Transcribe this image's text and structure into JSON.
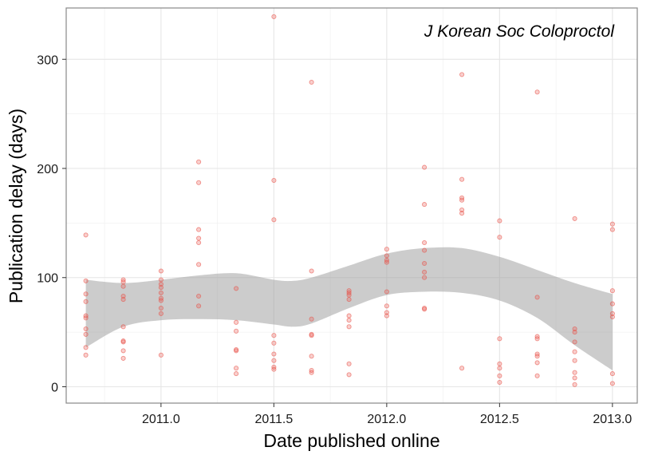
{
  "chart_data": {
    "type": "scatter",
    "xlabel": "Date published online",
    "ylabel": "Publication delay (days)",
    "annotation": "J Korean Soc Coloproctol",
    "xlim": [
      2010.58,
      2013.11
    ],
    "ylim": [
      -15,
      347
    ],
    "x_ticks": [
      2011.0,
      2011.5,
      2012.0,
      2012.5,
      2013.0
    ],
    "x_tick_labels": [
      "2011.0",
      "2011.5",
      "2012.0",
      "2012.5",
      "2013.0"
    ],
    "y_ticks": [
      0,
      100,
      200,
      300
    ],
    "y_tick_labels": [
      "0",
      "100",
      "200",
      "300"
    ],
    "grid": true,
    "point_color": "#e8534a",
    "band_color": "#999999",
    "points": [
      [
        2010.667,
        139
      ],
      [
        2010.667,
        97
      ],
      [
        2010.667,
        85
      ],
      [
        2010.667,
        78
      ],
      [
        2010.667,
        65
      ],
      [
        2010.667,
        63
      ],
      [
        2010.667,
        53
      ],
      [
        2010.667,
        48
      ],
      [
        2010.667,
        36
      ],
      [
        2010.667,
        29
      ],
      [
        2010.833,
        98
      ],
      [
        2010.833,
        96
      ],
      [
        2010.833,
        92
      ],
      [
        2010.833,
        83
      ],
      [
        2010.833,
        80
      ],
      [
        2010.833,
        55
      ],
      [
        2010.833,
        42
      ],
      [
        2010.833,
        41
      ],
      [
        2010.833,
        33
      ],
      [
        2010.833,
        26
      ],
      [
        2011.0,
        106
      ],
      [
        2011.0,
        98
      ],
      [
        2011.0,
        94
      ],
      [
        2011.0,
        91
      ],
      [
        2011.0,
        86
      ],
      [
        2011.0,
        81
      ],
      [
        2011.0,
        79
      ],
      [
        2011.0,
        72
      ],
      [
        2011.0,
        67
      ],
      [
        2011.0,
        29
      ],
      [
        2011.167,
        206
      ],
      [
        2011.167,
        187
      ],
      [
        2011.167,
        144
      ],
      [
        2011.167,
        136
      ],
      [
        2011.167,
        132
      ],
      [
        2011.167,
        112
      ],
      [
        2011.167,
        83
      ],
      [
        2011.167,
        74
      ],
      [
        2011.333,
        90
      ],
      [
        2011.333,
        59
      ],
      [
        2011.333,
        51
      ],
      [
        2011.333,
        34
      ],
      [
        2011.333,
        33
      ],
      [
        2011.333,
        17
      ],
      [
        2011.333,
        12
      ],
      [
        2011.5,
        339
      ],
      [
        2011.5,
        189
      ],
      [
        2011.5,
        153
      ],
      [
        2011.5,
        47
      ],
      [
        2011.5,
        40
      ],
      [
        2011.5,
        30
      ],
      [
        2011.5,
        24
      ],
      [
        2011.5,
        18
      ],
      [
        2011.5,
        16
      ],
      [
        2011.667,
        279
      ],
      [
        2011.667,
        106
      ],
      [
        2011.667,
        62
      ],
      [
        2011.667,
        48
      ],
      [
        2011.667,
        47
      ],
      [
        2011.667,
        28
      ],
      [
        2011.667,
        15
      ],
      [
        2011.667,
        13
      ],
      [
        2011.833,
        88
      ],
      [
        2011.833,
        86
      ],
      [
        2011.833,
        84
      ],
      [
        2011.833,
        80
      ],
      [
        2011.833,
        65
      ],
      [
        2011.833,
        61
      ],
      [
        2011.833,
        55
      ],
      [
        2011.833,
        21
      ],
      [
        2011.833,
        11
      ],
      [
        2012.0,
        126
      ],
      [
        2012.0,
        120
      ],
      [
        2012.0,
        116
      ],
      [
        2012.0,
        114
      ],
      [
        2012.0,
        87
      ],
      [
        2012.0,
        74
      ],
      [
        2012.0,
        68
      ],
      [
        2012.0,
        65
      ],
      [
        2012.167,
        201
      ],
      [
        2012.167,
        167
      ],
      [
        2012.167,
        132
      ],
      [
        2012.167,
        125
      ],
      [
        2012.167,
        113
      ],
      [
        2012.167,
        105
      ],
      [
        2012.167,
        100
      ],
      [
        2012.167,
        72
      ],
      [
        2012.167,
        71
      ],
      [
        2012.333,
        286
      ],
      [
        2012.333,
        190
      ],
      [
        2012.333,
        173
      ],
      [
        2012.333,
        171
      ],
      [
        2012.333,
        162
      ],
      [
        2012.333,
        159
      ],
      [
        2012.333,
        17
      ],
      [
        2012.5,
        152
      ],
      [
        2012.5,
        137
      ],
      [
        2012.5,
        44
      ],
      [
        2012.5,
        21
      ],
      [
        2012.5,
        17
      ],
      [
        2012.5,
        10
      ],
      [
        2012.5,
        4
      ],
      [
        2012.667,
        270
      ],
      [
        2012.667,
        82
      ],
      [
        2012.667,
        46
      ],
      [
        2012.667,
        44
      ],
      [
        2012.667,
        30
      ],
      [
        2012.667,
        28
      ],
      [
        2012.667,
        22
      ],
      [
        2012.667,
        10
      ],
      [
        2012.833,
        154
      ],
      [
        2012.833,
        53
      ],
      [
        2012.833,
        50
      ],
      [
        2012.833,
        41
      ],
      [
        2012.833,
        32
      ],
      [
        2012.833,
        24
      ],
      [
        2012.833,
        13
      ],
      [
        2012.833,
        8
      ],
      [
        2012.833,
        2
      ],
      [
        2013.0,
        149
      ],
      [
        2013.0,
        144
      ],
      [
        2013.0,
        88
      ],
      [
        2013.0,
        76
      ],
      [
        2013.0,
        67
      ],
      [
        2013.0,
        64
      ],
      [
        2013.0,
        12
      ],
      [
        2013.0,
        3
      ]
    ],
    "band": {
      "x": [
        2010.667,
        2010.833,
        2011.0,
        2011.167,
        2011.333,
        2011.5,
        2011.583,
        2011.667,
        2011.833,
        2012.0,
        2012.167,
        2012.333,
        2012.5,
        2012.667,
        2012.833,
        2013.0
      ],
      "upper": [
        98,
        95,
        98,
        102,
        104,
        98,
        97,
        100,
        111,
        122,
        127,
        127,
        119,
        107,
        95,
        85
      ],
      "lower": [
        36,
        55,
        61,
        62,
        61,
        57,
        55,
        58,
        72,
        84,
        87,
        86,
        79,
        63,
        38,
        15
      ]
    }
  }
}
